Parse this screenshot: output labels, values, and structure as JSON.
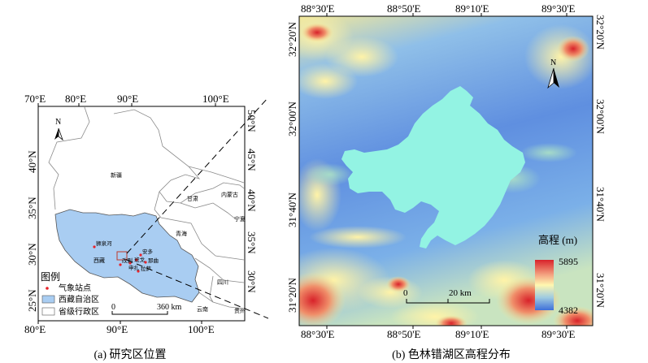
{
  "panel_a": {
    "top_lon": [
      "70°E",
      "80°E",
      "90°E",
      "100°E"
    ],
    "bottom_lon": [
      "80°E",
      "90°E",
      "100°E"
    ],
    "left_lat": [
      "40°N",
      "35°N",
      "30°N",
      "25°N"
    ],
    "right_lat": [
      "50°N",
      "45°N",
      "40°N",
      "35°N",
      "30°N"
    ],
    "regions": {
      "xinjiang": "新疆",
      "gansu": "甘肃",
      "neimenggu": "内蒙古",
      "ningxia": "宁夏",
      "qinghai": "青海",
      "xizang": "西藏",
      "sichuan": "四川",
      "yunnan": "云南",
      "guizhou": "贵州"
    },
    "stations": {
      "shiquanhe": "狮泉河",
      "gaize": "改则",
      "anduo": "安多",
      "naqu": "那曲",
      "shenzha": "申扎",
      "bange": "班戈",
      "lhasa": "拉萨"
    },
    "north_label": "N",
    "legend": {
      "title": "图例",
      "items": [
        "气象站点",
        "西藏自治区",
        "省级行政区"
      ]
    },
    "scale": {
      "zero": "0",
      "label": "360 km"
    },
    "caption": "(a) 研究区位置"
  },
  "panel_b": {
    "top_lon": [
      "88°30'E",
      "88°50'E",
      "89°10'E",
      "89°30'E"
    ],
    "bottom_lon": [
      "88°30'E",
      "88°50'E",
      "89°10'E",
      "89°30'E"
    ],
    "left_lat": [
      "32°20'N",
      "32°00'N",
      "31°40'N",
      "31°20'N"
    ],
    "right_lat": [
      "32°20'N",
      "32°00'N",
      "31°40'N",
      "31°20'N"
    ],
    "north_label": "N",
    "scale": {
      "zero": "0",
      "label": "20 km"
    },
    "legend": {
      "title": "高程 (m)",
      "max": "5895",
      "min": "4382"
    },
    "caption": "(b) 色林错湖区高程分布"
  },
  "colors": {
    "xizang_fill": "#a9cdf2",
    "lake": "#93f3e3",
    "station": "#e8232a",
    "dem_low": "#3e6fd9",
    "dem_mid": "#fff7b0",
    "dem_high": "#d8222a"
  }
}
